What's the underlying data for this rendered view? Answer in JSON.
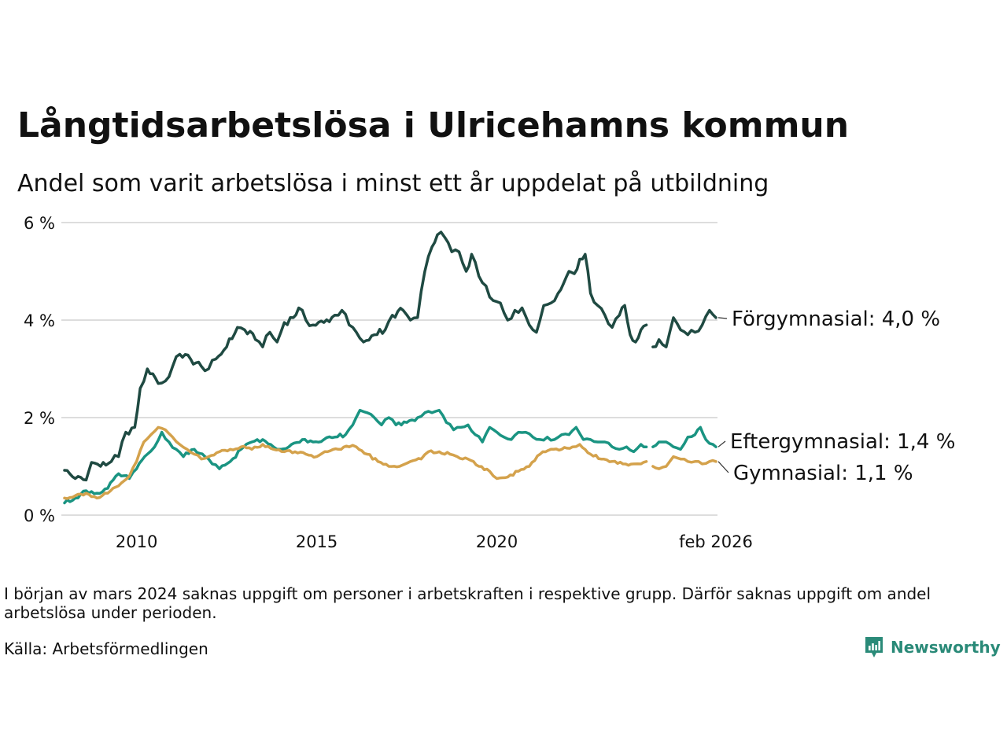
{
  "title": "Långtidsarbetslösa i Ulricehamns kommun",
  "subtitle": "Andel som varit arbetslösa i minst ett år uppdelat på utbildning",
  "note": "I början av mars 2024 saknas uppgift om personer i arbetskraften i respektive grupp. Därför saknas uppgift om andel arbetslösa under perioden.",
  "source": "Källa: Arbetsförmedlingen",
  "brand": "Newsworthy",
  "colors": {
    "forgymnasial": "#1f4a42",
    "eftergymnasial": "#1a9482",
    "gymnasial": "#d4a24c",
    "grid": "#dddddd",
    "brand": "#2a8a78"
  },
  "chart_data": {
    "type": "line",
    "x_start": 2008.0,
    "x_step": 0.0833,
    "xlim": [
      2008.0,
      2026.08
    ],
    "ylim": [
      0,
      6
    ],
    "yticks": [
      0,
      2,
      4,
      6
    ],
    "ytick_labels": [
      "0 %",
      "2 %",
      "4 %",
      "6 %"
    ],
    "xticks": [
      2010,
      2015,
      2020,
      2026.08
    ],
    "xtick_labels": [
      "2010",
      "2015",
      "2020",
      "feb 2026"
    ],
    "grid": true,
    "series": [
      {
        "name": "Förgymnasial",
        "label": "Förgymnasial: 4,0 %",
        "color_key": "forgymnasial",
        "anchors": [
          [
            2008.0,
            0.92
          ],
          [
            2008.3,
            0.75
          ],
          [
            2008.6,
            0.72
          ],
          [
            2008.75,
            1.08
          ],
          [
            2009.0,
            1.0
          ],
          [
            2009.3,
            1.1
          ],
          [
            2009.5,
            1.2
          ],
          [
            2009.7,
            1.7
          ],
          [
            2009.95,
            1.8
          ],
          [
            2010.1,
            2.6
          ],
          [
            2010.3,
            3.0
          ],
          [
            2010.45,
            2.9
          ],
          [
            2010.6,
            2.7
          ],
          [
            2010.8,
            2.75
          ],
          [
            2011.0,
            3.05
          ],
          [
            2011.2,
            3.3
          ],
          [
            2011.5,
            3.2
          ],
          [
            2011.8,
            3.05
          ],
          [
            2012.0,
            3.0
          ],
          [
            2012.2,
            3.2
          ],
          [
            2012.5,
            3.45
          ],
          [
            2012.8,
            3.85
          ],
          [
            2013.0,
            3.8
          ],
          [
            2013.3,
            3.6
          ],
          [
            2013.5,
            3.45
          ],
          [
            2013.7,
            3.75
          ],
          [
            2013.9,
            3.55
          ],
          [
            2014.1,
            3.95
          ],
          [
            2014.35,
            4.05
          ],
          [
            2014.5,
            4.25
          ],
          [
            2014.7,
            4.0
          ],
          [
            2014.9,
            3.9
          ],
          [
            2015.2,
            3.95
          ],
          [
            2015.5,
            4.1
          ],
          [
            2015.7,
            4.2
          ],
          [
            2015.9,
            3.9
          ],
          [
            2016.1,
            3.75
          ],
          [
            2016.3,
            3.55
          ],
          [
            2016.6,
            3.7
          ],
          [
            2016.9,
            3.8
          ],
          [
            2017.1,
            4.1
          ],
          [
            2017.4,
            4.2
          ],
          [
            2017.6,
            4.0
          ],
          [
            2017.8,
            4.05
          ],
          [
            2018.0,
            5.0
          ],
          [
            2018.2,
            5.5
          ],
          [
            2018.35,
            5.75
          ],
          [
            2018.55,
            5.7
          ],
          [
            2018.75,
            5.4
          ],
          [
            2018.95,
            5.4
          ],
          [
            2019.15,
            5.0
          ],
          [
            2019.3,
            5.35
          ],
          [
            2019.5,
            4.9
          ],
          [
            2019.7,
            4.7
          ],
          [
            2019.9,
            4.4
          ],
          [
            2020.1,
            4.35
          ],
          [
            2020.3,
            4.0
          ],
          [
            2020.5,
            4.2
          ],
          [
            2020.7,
            4.25
          ],
          [
            2020.9,
            3.9
          ],
          [
            2021.1,
            3.75
          ],
          [
            2021.3,
            4.3
          ],
          [
            2021.5,
            4.35
          ],
          [
            2021.7,
            4.55
          ],
          [
            2021.85,
            4.75
          ],
          [
            2022.0,
            5.0
          ],
          [
            2022.15,
            4.95
          ],
          [
            2022.3,
            5.25
          ],
          [
            2022.45,
            5.35
          ],
          [
            2022.6,
            4.55
          ],
          [
            2022.8,
            4.3
          ],
          [
            2023.0,
            4.1
          ],
          [
            2023.2,
            3.85
          ],
          [
            2023.4,
            4.1
          ],
          [
            2023.55,
            4.3
          ],
          [
            2023.7,
            3.7
          ],
          [
            2023.85,
            3.55
          ],
          [
            2024.0,
            3.8
          ],
          [
            2024.15,
            3.9
          ],
          [
            null,
            null
          ],
          [
            2024.33,
            3.45
          ],
          [
            2024.5,
            3.6
          ],
          [
            2024.7,
            3.45
          ],
          [
            2024.9,
            4.05
          ],
          [
            2025.1,
            3.8
          ],
          [
            2025.3,
            3.7
          ],
          [
            2025.5,
            3.75
          ],
          [
            2025.7,
            3.9
          ],
          [
            2025.9,
            4.2
          ],
          [
            2026.08,
            4.05
          ]
        ]
      },
      {
        "name": "Eftergymnasial",
        "label": "Eftergymnasial: 1,4 %",
        "color_key": "eftergymnasial",
        "anchors": [
          [
            2008.0,
            0.25
          ],
          [
            2008.3,
            0.35
          ],
          [
            2008.6,
            0.5
          ],
          [
            2008.9,
            0.45
          ],
          [
            2009.2,
            0.55
          ],
          [
            2009.5,
            0.85
          ],
          [
            2009.8,
            0.75
          ],
          [
            2010.0,
            0.95
          ],
          [
            2010.3,
            1.25
          ],
          [
            2010.5,
            1.4
          ],
          [
            2010.7,
            1.7
          ],
          [
            2010.9,
            1.5
          ],
          [
            2011.1,
            1.35
          ],
          [
            2011.3,
            1.2
          ],
          [
            2011.6,
            1.35
          ],
          [
            2011.9,
            1.2
          ],
          [
            2012.1,
            1.05
          ],
          [
            2012.3,
            0.95
          ],
          [
            2012.6,
            1.1
          ],
          [
            2012.9,
            1.35
          ],
          [
            2013.2,
            1.5
          ],
          [
            2013.5,
            1.55
          ],
          [
            2013.8,
            1.4
          ],
          [
            2014.0,
            1.35
          ],
          [
            2014.3,
            1.45
          ],
          [
            2014.6,
            1.55
          ],
          [
            2014.9,
            1.5
          ],
          [
            2015.2,
            1.55
          ],
          [
            2015.5,
            1.6
          ],
          [
            2015.8,
            1.65
          ],
          [
            2016.0,
            1.85
          ],
          [
            2016.2,
            2.15
          ],
          [
            2016.4,
            2.1
          ],
          [
            2016.6,
            2.0
          ],
          [
            2016.8,
            1.85
          ],
          [
            2017.0,
            2.0
          ],
          [
            2017.2,
            1.85
          ],
          [
            2017.5,
            1.9
          ],
          [
            2017.8,
            2.0
          ],
          [
            2018.0,
            2.1
          ],
          [
            2018.2,
            2.1
          ],
          [
            2018.4,
            2.15
          ],
          [
            2018.6,
            1.9
          ],
          [
            2018.8,
            1.75
          ],
          [
            2019.0,
            1.8
          ],
          [
            2019.2,
            1.85
          ],
          [
            2019.4,
            1.65
          ],
          [
            2019.6,
            1.5
          ],
          [
            2019.8,
            1.8
          ],
          [
            2020.0,
            1.7
          ],
          [
            2020.2,
            1.6
          ],
          [
            2020.4,
            1.55
          ],
          [
            2020.6,
            1.7
          ],
          [
            2020.8,
            1.7
          ],
          [
            2021.0,
            1.6
          ],
          [
            2021.2,
            1.55
          ],
          [
            2021.4,
            1.6
          ],
          [
            2021.6,
            1.55
          ],
          [
            2021.8,
            1.65
          ],
          [
            2022.0,
            1.65
          ],
          [
            2022.2,
            1.8
          ],
          [
            2022.4,
            1.55
          ],
          [
            2022.6,
            1.55
          ],
          [
            2022.8,
            1.5
          ],
          [
            2023.0,
            1.5
          ],
          [
            2023.2,
            1.4
          ],
          [
            2023.4,
            1.35
          ],
          [
            2023.6,
            1.4
          ],
          [
            2023.8,
            1.3
          ],
          [
            2024.0,
            1.45
          ],
          [
            2024.15,
            1.4
          ],
          [
            null,
            null
          ],
          [
            2024.33,
            1.4
          ],
          [
            2024.5,
            1.5
          ],
          [
            2024.7,
            1.5
          ],
          [
            2024.9,
            1.4
          ],
          [
            2025.1,
            1.35
          ],
          [
            2025.3,
            1.6
          ],
          [
            2025.5,
            1.65
          ],
          [
            2025.65,
            1.8
          ],
          [
            2025.8,
            1.55
          ],
          [
            2026.0,
            1.45
          ],
          [
            2026.08,
            1.4
          ]
        ]
      },
      {
        "name": "Gymnasial",
        "label": "Gymnasial: 1,1 %",
        "color_key": "gymnasial",
        "anchors": [
          [
            2008.0,
            0.35
          ],
          [
            2008.3,
            0.4
          ],
          [
            2008.6,
            0.45
          ],
          [
            2008.9,
            0.35
          ],
          [
            2009.2,
            0.45
          ],
          [
            2009.5,
            0.6
          ],
          [
            2009.8,
            0.8
          ],
          [
            2010.0,
            1.1
          ],
          [
            2010.2,
            1.5
          ],
          [
            2010.4,
            1.65
          ],
          [
            2010.6,
            1.8
          ],
          [
            2010.8,
            1.75
          ],
          [
            2011.0,
            1.6
          ],
          [
            2011.2,
            1.45
          ],
          [
            2011.4,
            1.35
          ],
          [
            2011.6,
            1.25
          ],
          [
            2011.8,
            1.15
          ],
          [
            2012.0,
            1.2
          ],
          [
            2012.3,
            1.3
          ],
          [
            2012.6,
            1.35
          ],
          [
            2012.9,
            1.4
          ],
          [
            2013.2,
            1.35
          ],
          [
            2013.5,
            1.45
          ],
          [
            2013.8,
            1.35
          ],
          [
            2014.1,
            1.3
          ],
          [
            2014.4,
            1.3
          ],
          [
            2014.7,
            1.25
          ],
          [
            2015.0,
            1.2
          ],
          [
            2015.3,
            1.3
          ],
          [
            2015.6,
            1.35
          ],
          [
            2015.9,
            1.4
          ],
          [
            2016.1,
            1.4
          ],
          [
            2016.4,
            1.25
          ],
          [
            2016.7,
            1.1
          ],
          [
            2017.0,
            1.0
          ],
          [
            2017.3,
            1.0
          ],
          [
            2017.6,
            1.1
          ],
          [
            2017.9,
            1.15
          ],
          [
            2018.1,
            1.3
          ],
          [
            2018.4,
            1.3
          ],
          [
            2018.7,
            1.25
          ],
          [
            2018.9,
            1.2
          ],
          [
            2019.2,
            1.15
          ],
          [
            2019.5,
            1.0
          ],
          [
            2019.8,
            0.9
          ],
          [
            2020.0,
            0.75
          ],
          [
            2020.3,
            0.78
          ],
          [
            2020.6,
            0.9
          ],
          [
            2020.9,
            1.0
          ],
          [
            2021.2,
            1.25
          ],
          [
            2021.5,
            1.35
          ],
          [
            2021.8,
            1.35
          ],
          [
            2022.1,
            1.4
          ],
          [
            2022.3,
            1.45
          ],
          [
            2022.6,
            1.25
          ],
          [
            2022.9,
            1.15
          ],
          [
            2023.2,
            1.1
          ],
          [
            2023.5,
            1.05
          ],
          [
            2023.8,
            1.05
          ],
          [
            2024.0,
            1.05
          ],
          [
            2024.15,
            1.1
          ],
          [
            null,
            null
          ],
          [
            2024.33,
            1.0
          ],
          [
            2024.5,
            0.95
          ],
          [
            2024.7,
            1.0
          ],
          [
            2024.9,
            1.2
          ],
          [
            2025.1,
            1.15
          ],
          [
            2025.3,
            1.1
          ],
          [
            2025.5,
            1.1
          ],
          [
            2025.7,
            1.05
          ],
          [
            2025.9,
            1.1
          ],
          [
            2026.08,
            1.1
          ]
        ]
      }
    ]
  }
}
